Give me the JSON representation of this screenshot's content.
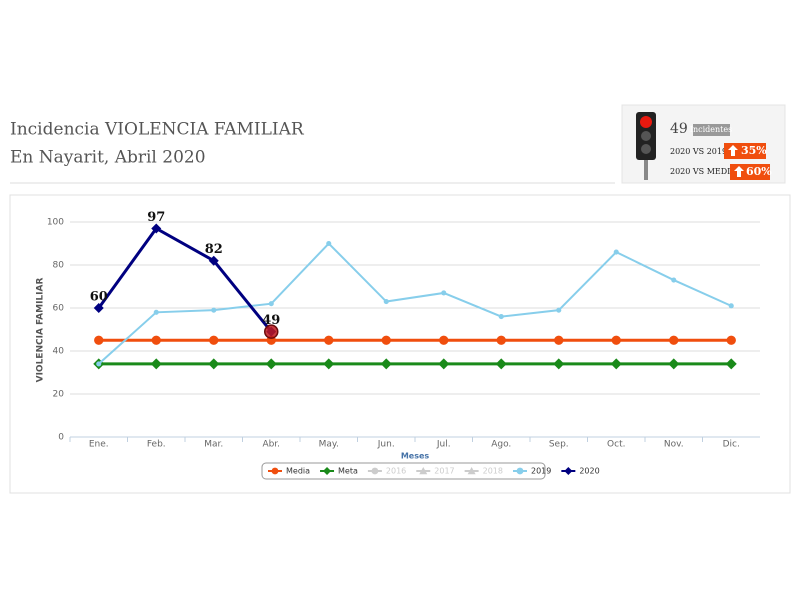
{
  "header": {
    "title_lines": [
      "Incidencia VIOLENCIA FAMILIAR",
      "En Nayarit, Abril 2020"
    ]
  },
  "indicator": {
    "count": 49,
    "count_label": "Incidentes",
    "rows": [
      {
        "label": "2020 VS 2019",
        "change": "35%"
      },
      {
        "label": "2020 VS MEDIA",
        "change": "60%"
      }
    ]
  },
  "chart_data": {
    "type": "line",
    "categories": [
      "Ene.",
      "Feb.",
      "Mar.",
      "Abr.",
      "May.",
      "Jun.",
      "Jul.",
      "Ago.",
      "Sep.",
      "Oct.",
      "Nov.",
      "Dic."
    ],
    "x_label": "Meses",
    "y_label": "VIOLENCIA FAMILIAR",
    "ylim": [
      0,
      100
    ],
    "yticks": [
      0,
      20,
      40,
      60,
      80,
      100
    ],
    "grid": true,
    "series": [
      {
        "name": "Media",
        "color": "#f04e0e",
        "marker": "circle",
        "visible": true,
        "values": [
          45,
          45,
          45,
          45,
          45,
          45,
          45,
          45,
          45,
          45,
          45,
          45
        ]
      },
      {
        "name": "Meta",
        "color": "#1a8a1a",
        "marker": "diamond",
        "visible": true,
        "values": [
          34,
          34,
          34,
          34,
          34,
          34,
          34,
          34,
          34,
          34,
          34,
          34
        ]
      },
      {
        "name": "2016",
        "color": "#cccccc",
        "marker": "circle",
        "visible": false,
        "values": [
          null,
          null,
          null,
          null,
          null,
          null,
          null,
          null,
          null,
          null,
          null,
          null
        ]
      },
      {
        "name": "2017",
        "color": "#cccccc",
        "marker": "triangle",
        "visible": false,
        "values": [
          null,
          null,
          null,
          null,
          null,
          null,
          null,
          null,
          null,
          null,
          null,
          null
        ]
      },
      {
        "name": "2018",
        "color": "#cccccc",
        "marker": "triangle",
        "visible": false,
        "values": [
          null,
          null,
          null,
          null,
          null,
          null,
          null,
          null,
          null,
          null,
          null,
          null
        ]
      },
      {
        "name": "2019",
        "color": "#87ceeb",
        "marker": "circle",
        "visible": true,
        "values": [
          34,
          58,
          59,
          62,
          90,
          63,
          67,
          56,
          59,
          86,
          73,
          61
        ]
      },
      {
        "name": "2020",
        "color": "#000080",
        "marker": "diamond",
        "visible": true,
        "data_labels": true,
        "values": [
          60,
          97,
          82,
          49,
          null,
          null,
          null,
          null,
          null,
          null,
          null,
          null
        ]
      }
    ]
  }
}
